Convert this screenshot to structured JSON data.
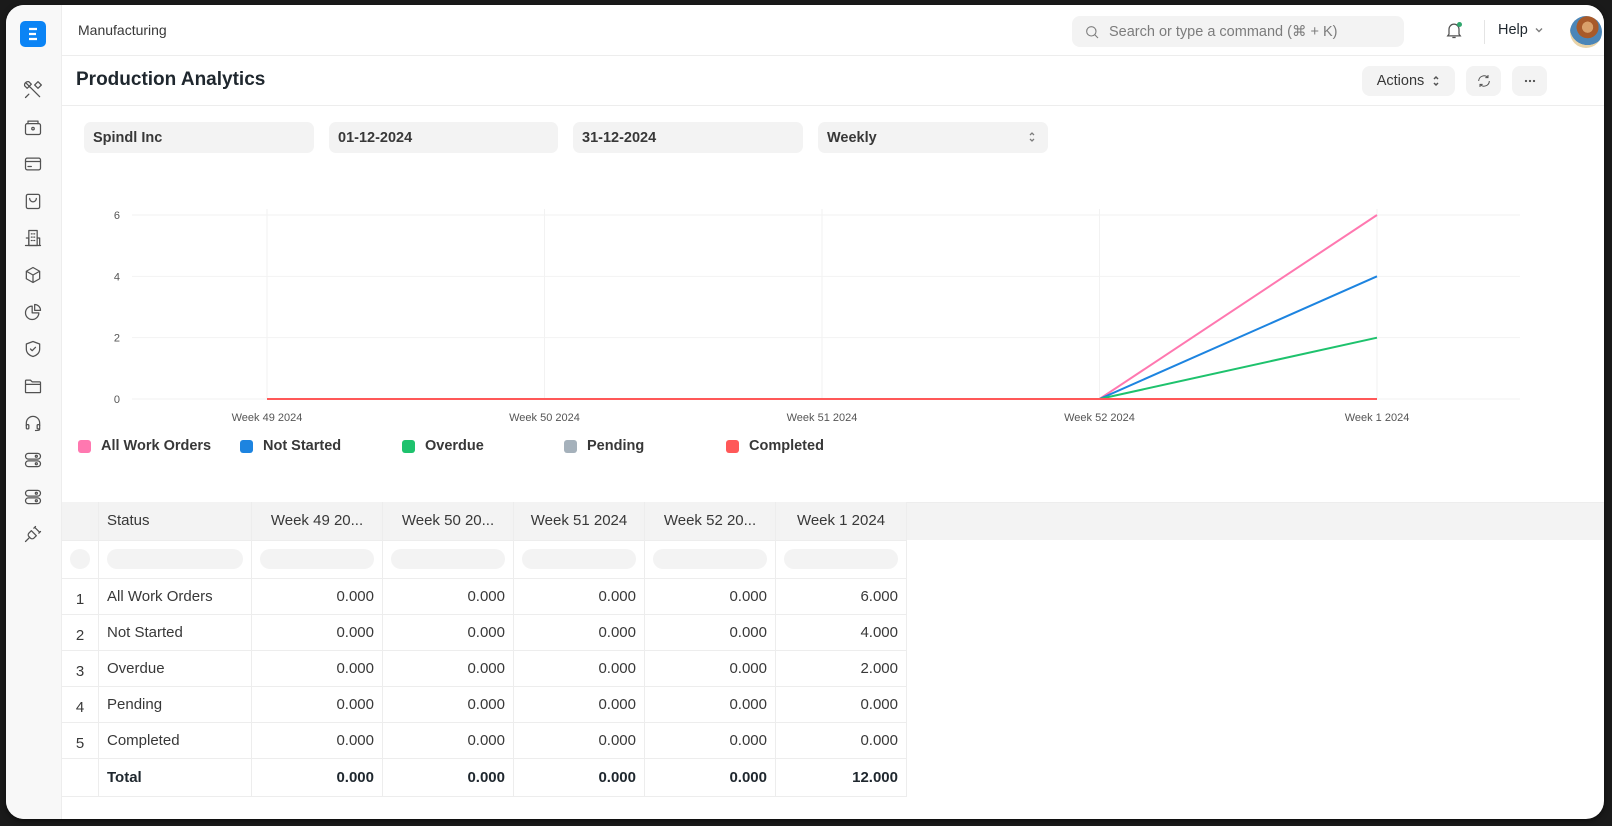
{
  "app": {
    "logo_letter": "E",
    "breadcrumb": "Manufacturing",
    "search_placeholder": "Search or type a command (⌘ + K)",
    "help_label": "Help",
    "notification_dot_color": "#30a66d"
  },
  "sidebar": {
    "items": [
      {
        "icon": "tools-icon",
        "label": "Manufacturing"
      },
      {
        "icon": "accounting-icon",
        "label": "Accounting"
      },
      {
        "icon": "card-icon",
        "label": "Billing"
      },
      {
        "icon": "shopping-bag-icon",
        "label": "Selling"
      },
      {
        "icon": "building-icon",
        "label": "Buying"
      },
      {
        "icon": "box-icon",
        "label": "Stock"
      },
      {
        "icon": "pie-chart-icon",
        "label": "Assets"
      },
      {
        "icon": "shield-check-icon",
        "label": "Quality"
      },
      {
        "icon": "folder-icon",
        "label": "Projects"
      },
      {
        "icon": "headset-icon",
        "label": "Support"
      },
      {
        "icon": "toggle-icon",
        "label": "Settings"
      },
      {
        "icon": "toggle-icon",
        "label": "Customization"
      },
      {
        "icon": "plug-icon",
        "label": "Integrations"
      }
    ]
  },
  "page": {
    "title": "Production Analytics",
    "actions_label": "Actions",
    "refresh_label": "Refresh",
    "more_label": "More"
  },
  "filters": {
    "company": "Spindl Inc",
    "from_date": "01-12-2024",
    "to_date": "31-12-2024",
    "range": "Weekly"
  },
  "chart_data": {
    "type": "line",
    "title": "",
    "xlabel": "",
    "ylabel": "",
    "categories": [
      "Week 49 2024",
      "Week 50 2024",
      "Week 51 2024",
      "Week 52 2024",
      "Week 1 2024"
    ],
    "y_ticks": [
      0,
      2,
      4,
      6
    ],
    "ylim": [
      0,
      6
    ],
    "grid": true,
    "legend_position": "bottom",
    "series": [
      {
        "name": "All Work Orders",
        "color": "#ff78b0",
        "values": [
          0,
          0,
          0,
          0,
          6
        ]
      },
      {
        "name": "Not Started",
        "color": "#1d84e0",
        "values": [
          0,
          0,
          0,
          0,
          4
        ]
      },
      {
        "name": "Overdue",
        "color": "#1ec26d",
        "values": [
          0,
          0,
          0,
          0,
          2
        ]
      },
      {
        "name": "Pending",
        "color": "#a5b1bb",
        "values": [
          0,
          0,
          0,
          0,
          0
        ]
      },
      {
        "name": "Completed",
        "color": "#ff5858",
        "values": [
          0,
          0,
          0,
          0,
          0
        ]
      }
    ]
  },
  "table": {
    "columns": [
      "Status",
      "Week 49 20...",
      "Week 50 20...",
      "Week 51 2024",
      "Week 52 20...",
      "Week 1 2024"
    ],
    "rows": [
      {
        "index": "1",
        "status": "All Work Orders",
        "values": [
          "0.000",
          "0.000",
          "0.000",
          "0.000",
          "6.000"
        ]
      },
      {
        "index": "2",
        "status": "Not Started",
        "values": [
          "0.000",
          "0.000",
          "0.000",
          "0.000",
          "4.000"
        ]
      },
      {
        "index": "3",
        "status": "Overdue",
        "values": [
          "0.000",
          "0.000",
          "0.000",
          "0.000",
          "2.000"
        ]
      },
      {
        "index": "4",
        "status": "Pending",
        "values": [
          "0.000",
          "0.000",
          "0.000",
          "0.000",
          "0.000"
        ]
      },
      {
        "index": "5",
        "status": "Completed",
        "values": [
          "0.000",
          "0.000",
          "0.000",
          "0.000",
          "0.000"
        ]
      }
    ],
    "total": {
      "label": "Total",
      "values": [
        "0.000",
        "0.000",
        "0.000",
        "0.000",
        "12.000"
      ]
    }
  }
}
